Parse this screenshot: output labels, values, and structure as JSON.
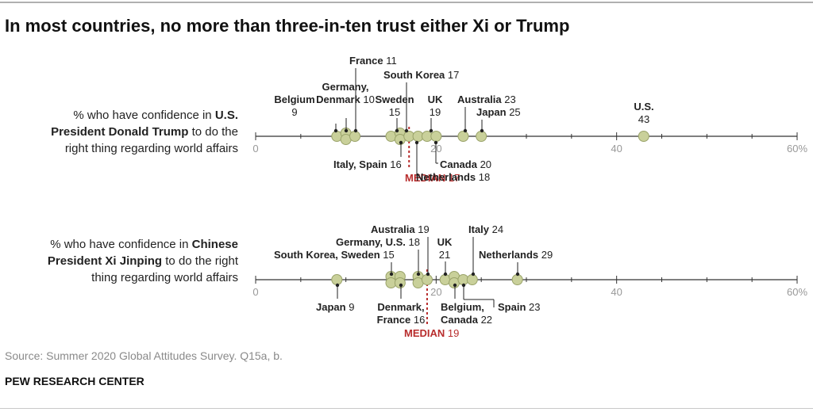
{
  "title": "In most countries, no more than three-in-ten trust either Xi or Trump",
  "source": "Source: Summer 2020 Global Attitudes Survey. Q15a, b.",
  "org": "PEW RESEARCH CENTER",
  "colors": {
    "dot_fill": "#c9d09a",
    "dot_stroke": "#9aa36a",
    "median": "#b82d2d",
    "axis": "#333333",
    "tick_label": "#999999",
    "leader": "#222222"
  },
  "rows": [
    {
      "label_pre": "% who have confidence in ",
      "label_bold": "U.S. President Donald Trump",
      "label_post": " to do the right thing regarding world affairs",
      "label_lines": [
        {
          "pre": "% who have confidence in ",
          "bold": "U.S.",
          "post": ""
        },
        {
          "pre": "",
          "bold": "President Donald Trump",
          "post": " to do the"
        },
        {
          "pre": "right thing regarding world affairs",
          "bold": "",
          "post": ""
        }
      ]
    },
    {
      "label_pre": "% who have confidence in ",
      "label_bold": "Chinese President Xi Jinping",
      "label_post": " to do the right thing regarding world affairs",
      "label_lines": [
        {
          "pre": "% who have confidence in ",
          "bold": "Chinese",
          "post": ""
        },
        {
          "pre": "",
          "bold": "President Xi Jinping",
          "post": " to do the right"
        },
        {
          "pre": "thing regarding world affairs",
          "bold": "",
          "post": ""
        }
      ]
    }
  ],
  "chart_data": [
    {
      "type": "scatter",
      "title": "% who have confidence in U.S. President Donald Trump to do the right thing regarding world affairs",
      "xlim": [
        0,
        60
      ],
      "ticks": [
        {
          "v": 0,
          "t": "0"
        },
        {
          "v": 20,
          "t": "20"
        },
        {
          "v": 40,
          "t": "40"
        },
        {
          "v": 60,
          "t": "60%"
        }
      ],
      "points": [
        {
          "country": "Belgium",
          "value": 9
        },
        {
          "country": "Germany",
          "value": 10
        },
        {
          "country": "Denmark",
          "value": 10
        },
        {
          "country": "France",
          "value": 11
        },
        {
          "country": "Sweden",
          "value": 15
        },
        {
          "country": "Italy",
          "value": 16
        },
        {
          "country": "Spain",
          "value": 16
        },
        {
          "country": "South Korea",
          "value": 17
        },
        {
          "country": "Netherlands",
          "value": 18
        },
        {
          "country": "UK",
          "value": 19
        },
        {
          "country": "Canada",
          "value": 20
        },
        {
          "country": "Australia",
          "value": 23
        },
        {
          "country": "Japan",
          "value": 25
        },
        {
          "country": "U.S.",
          "value": 43
        }
      ],
      "median": {
        "label": "MEDIAN",
        "value": 17
      },
      "annotations": [
        {
          "name": "France",
          "value": "11"
        },
        {
          "name": "South Korea",
          "value": "17"
        },
        {
          "name": "Germany,\nDenmark",
          "value": "10"
        },
        {
          "name": "Belgium",
          "value": "9"
        },
        {
          "name": "Sweden",
          "value": "15"
        },
        {
          "name": "UK",
          "value": "19"
        },
        {
          "name": "Australia",
          "value": "23"
        },
        {
          "name": "Japan",
          "value": "25"
        },
        {
          "name": "U.S.",
          "value": "43"
        },
        {
          "name": "Italy, Spain",
          "value": "16"
        },
        {
          "name": "Canada",
          "value": "20"
        },
        {
          "name": "Netherlands",
          "value": "18"
        }
      ]
    },
    {
      "type": "scatter",
      "title": "% who have confidence in Chinese President Xi Jinping to do the right thing regarding world affairs",
      "xlim": [
        0,
        60
      ],
      "ticks": [
        {
          "v": 0,
          "t": "0"
        },
        {
          "v": 20,
          "t": "20"
        },
        {
          "v": 40,
          "t": "40"
        },
        {
          "v": 60,
          "t": "60%"
        }
      ],
      "points": [
        {
          "country": "Japan",
          "value": 9
        },
        {
          "country": "South Korea",
          "value": 15
        },
        {
          "country": "Sweden",
          "value": 15
        },
        {
          "country": "Denmark",
          "value": 16
        },
        {
          "country": "France",
          "value": 16
        },
        {
          "country": "Germany",
          "value": 18
        },
        {
          "country": "U.S.",
          "value": 18
        },
        {
          "country": "Australia",
          "value": 19
        },
        {
          "country": "UK",
          "value": 21
        },
        {
          "country": "Belgium",
          "value": 22
        },
        {
          "country": "Canada",
          "value": 22
        },
        {
          "country": "Spain",
          "value": 23
        },
        {
          "country": "Italy",
          "value": 24
        },
        {
          "country": "Netherlands",
          "value": 29
        }
      ],
      "median": {
        "label": "MEDIAN",
        "value": 19
      },
      "annotations": [
        {
          "name": "Australia",
          "value": "19"
        },
        {
          "name": "Italy",
          "value": "24"
        },
        {
          "name": "Germany, U.S.",
          "value": "18"
        },
        {
          "name": "UK",
          "value": "21"
        },
        {
          "name": "South Korea, Sweden",
          "value": "15"
        },
        {
          "name": "Netherlands",
          "value": "29"
        },
        {
          "name": "Japan",
          "value": "9"
        },
        {
          "name": "Denmark,\nFrance",
          "value": "16"
        },
        {
          "name": "Belgium,\nCanada",
          "value": "22"
        },
        {
          "name": "Spain",
          "value": "23"
        }
      ]
    }
  ]
}
